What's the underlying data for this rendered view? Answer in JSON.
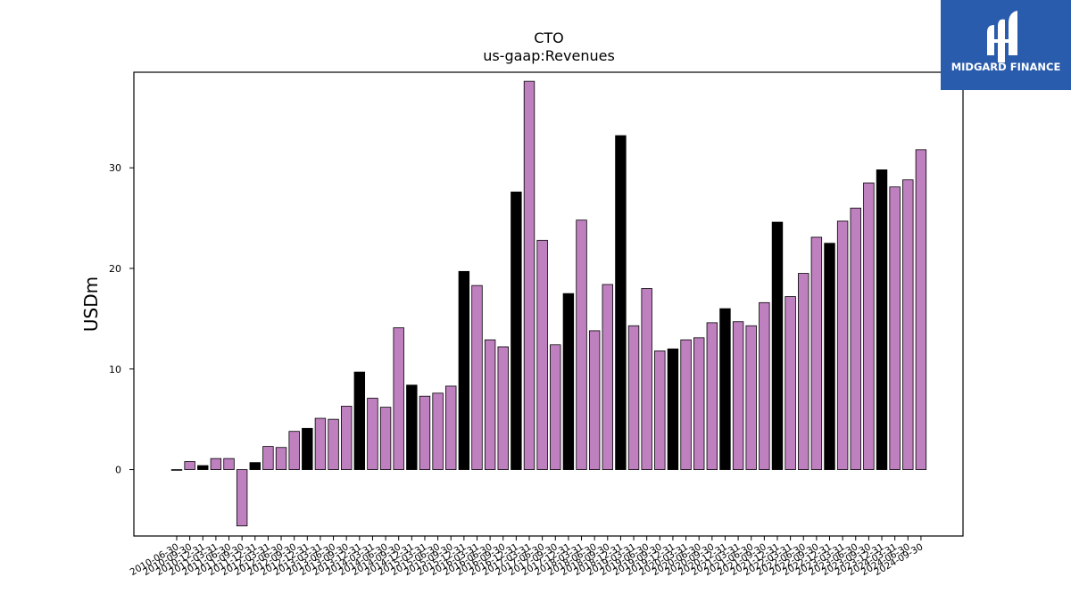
{
  "logo": {
    "text": "MIDGARD FINANCE"
  },
  "chart_data": {
    "type": "bar",
    "title": "CTO",
    "subtitle": "us-gaap:Revenues",
    "ylabel": "USDm",
    "xlabel": "",
    "ylim": [
      -6.6,
      39.5
    ],
    "yticks": [
      0,
      10,
      20,
      30
    ],
    "colors": {
      "regular": "#bf80bf",
      "highlight": "#000000",
      "edge": "#000000"
    },
    "categories": [
      "2010-06-30",
      "2010-09-30",
      "2010-12-31",
      "2011-03-31",
      "2011-06-30",
      "2011-09-30",
      "2011-12-31",
      "2012-03-31",
      "2012-06-30",
      "2012-09-30",
      "2012-12-31",
      "2013-03-31",
      "2013-06-30",
      "2013-09-30",
      "2013-12-31",
      "2014-03-31",
      "2014-06-30",
      "2014-09-30",
      "2014-12-31",
      "2015-03-31",
      "2015-06-30",
      "2015-09-30",
      "2015-12-31",
      "2016-03-31",
      "2016-06-30",
      "2016-09-30",
      "2016-12-31",
      "2017-03-31",
      "2017-06-30",
      "2017-09-30",
      "2017-12-31",
      "2018-03-31",
      "2018-06-30",
      "2018-09-30",
      "2018-12-31",
      "2019-03-31",
      "2019-06-30",
      "2019-09-30",
      "2019-12-31",
      "2020-03-31",
      "2020-06-30",
      "2020-09-30",
      "2020-12-31",
      "2021-03-31",
      "2021-06-30",
      "2021-09-30",
      "2021-12-31",
      "2022-03-31",
      "2022-06-30",
      "2022-09-30",
      "2022-12-31",
      "2023-03-31",
      "2023-06-30",
      "2023-09-30",
      "2023-12-31",
      "2024-03-31",
      "2024-06-30",
      "2024-09-30"
    ],
    "values": [
      0.0,
      0.8,
      0.4,
      1.1,
      1.1,
      -5.6,
      0.7,
      2.3,
      2.2,
      3.8,
      4.1,
      5.1,
      5.0,
      6.3,
      9.7,
      7.1,
      6.2,
      14.1,
      8.4,
      7.3,
      7.6,
      8.3,
      19.7,
      18.3,
      12.9,
      12.2,
      27.6,
      38.6,
      22.8,
      12.4,
      17.5,
      24.8,
      13.8,
      18.4,
      33.2,
      14.3,
      18.0,
      11.8,
      12.0,
      12.9,
      13.1,
      14.6,
      16.0,
      14.7,
      14.3,
      16.6,
      24.6,
      17.2,
      19.5,
      23.1,
      22.5,
      24.7,
      26.0,
      28.5,
      29.8,
      28.1,
      28.8,
      31.8
    ],
    "highlight": [
      false,
      false,
      true,
      false,
      false,
      false,
      true,
      false,
      false,
      false,
      true,
      false,
      false,
      false,
      true,
      false,
      false,
      false,
      true,
      false,
      false,
      false,
      true,
      false,
      false,
      false,
      true,
      false,
      false,
      false,
      true,
      false,
      false,
      false,
      true,
      false,
      false,
      false,
      true,
      false,
      false,
      false,
      true,
      false,
      false,
      false,
      true,
      false,
      false,
      false,
      true,
      false,
      false,
      false,
      true,
      false,
      false,
      false
    ]
  }
}
